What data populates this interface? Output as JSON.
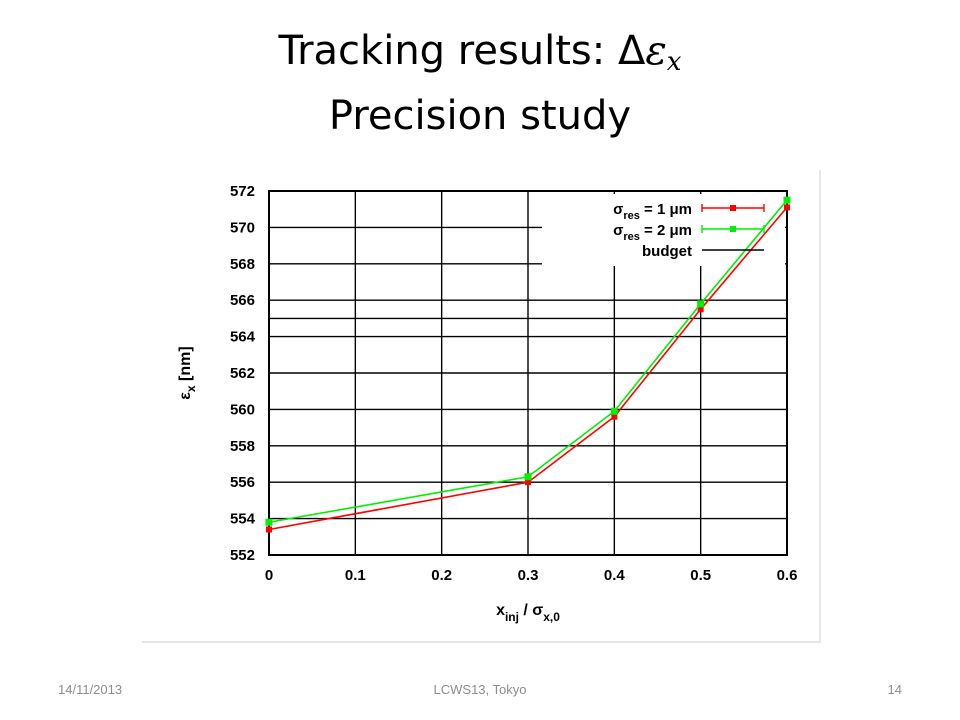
{
  "slide": {
    "title_prefix": "Tracking results: Δ",
    "title_symbol": "ε",
    "title_subscript": "x",
    "title_line2": "Precision study",
    "footer_date": "14/11/2013",
    "footer_conf": "LCWS13, Tokyo",
    "footer_page": "14"
  },
  "chart_data": {
    "type": "line",
    "title": "",
    "xlabel": "x_inj / σ_x,0",
    "ylabel": "ε_x [nm]",
    "x": [
      0,
      0.3,
      0.4,
      0.5,
      0.6
    ],
    "xlim": [
      0,
      0.6
    ],
    "ylim": [
      552,
      572
    ],
    "xticks": [
      "0",
      "0.1",
      "0.2",
      "0.3",
      "0.4",
      "0.5",
      "0.6"
    ],
    "yticks": [
      "552",
      "554",
      "556",
      "558",
      "560",
      "562",
      "564",
      "566",
      "568",
      "570",
      "572"
    ],
    "grid": true,
    "legend_position": "top-right",
    "series": [
      {
        "name": "σres = 1 μm",
        "values": [
          553.4,
          556.0,
          559.6,
          565.5,
          571.1
        ],
        "color": "#ff0000",
        "marker": "plus"
      },
      {
        "name": "σres = 2 μm",
        "values": [
          553.8,
          556.3,
          559.9,
          565.8,
          571.5
        ],
        "color": "#00ee00",
        "marker": "x"
      }
    ],
    "budget": {
      "name": "budget",
      "value": 565.0,
      "color": "#000000"
    }
  }
}
